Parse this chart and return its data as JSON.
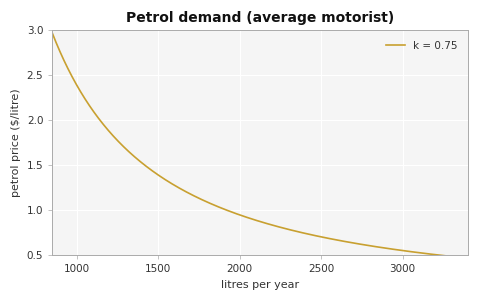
{
  "title": "Petrol demand (average motorist)",
  "xlabel": "litres per year",
  "ylabel": "petrol price ($/litre)",
  "x_min": 850,
  "x_max": 3400,
  "y_min": 0.5,
  "y_max": 3.0,
  "x_ticks": [
    1000,
    1500,
    2000,
    2500,
    3000
  ],
  "y_ticks": [
    0.5,
    1.0,
    1.5,
    2.0,
    2.5,
    3.0
  ],
  "k": 0.75,
  "exponent": -1.3333333333,
  "Q0": 850,
  "p0": 2.97,
  "line_color": "#C8A030",
  "legend_label": "k = 0.75",
  "background_color": "#ffffff",
  "plot_bg_color": "#f5f5f5",
  "grid_color": "#ffffff",
  "spine_color": "#aaaaaa",
  "title_fontsize": 10,
  "label_fontsize": 8,
  "tick_fontsize": 7.5
}
